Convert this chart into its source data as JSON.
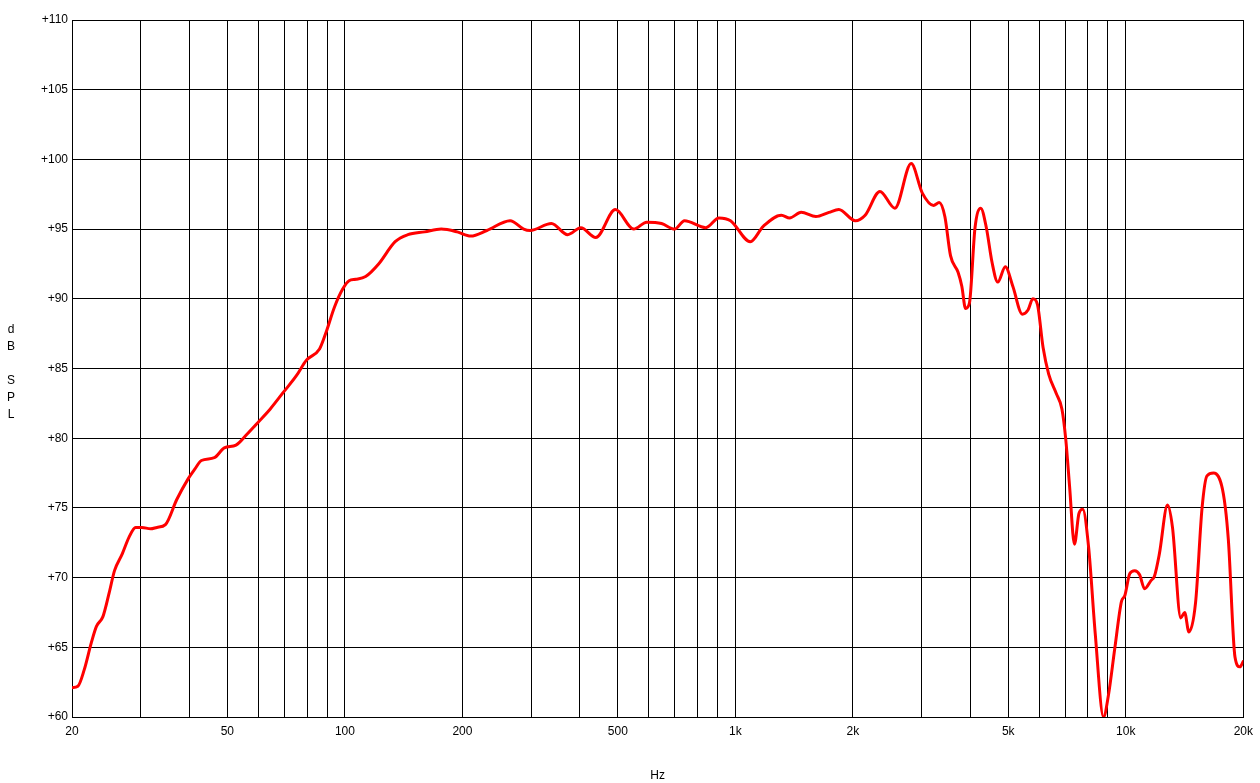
{
  "chart_data": {
    "type": "line",
    "xlabel": "Hz",
    "ylabel": "dB SPL",
    "log": "x",
    "xlim": [
      20,
      20000
    ],
    "ylim": [
      60,
      110
    ],
    "xticks": [
      20,
      {
        "value": 30,
        "label": null
      },
      {
        "value": 40,
        "label": null
      },
      50,
      {
        "value": 60,
        "label": null
      },
      {
        "value": 70,
        "label": null
      },
      {
        "value": 80,
        "label": null
      },
      {
        "value": 90,
        "label": null
      },
      100,
      200,
      {
        "value": 300,
        "label": null
      },
      {
        "value": 400,
        "label": null
      },
      500,
      {
        "value": 600,
        "label": null
      },
      {
        "value": 700,
        "label": null
      },
      {
        "value": 800,
        "label": null
      },
      {
        "value": 900,
        "label": null
      },
      {
        "value": 1000,
        "label": "1k"
      },
      {
        "value": 2000,
        "label": "2k"
      },
      {
        "value": 3000,
        "label": null
      },
      {
        "value": 4000,
        "label": null
      },
      {
        "value": 5000,
        "label": "5k"
      },
      {
        "value": 6000,
        "label": null
      },
      {
        "value": 7000,
        "label": null
      },
      {
        "value": 8000,
        "label": null
      },
      {
        "value": 9000,
        "label": null
      },
      {
        "value": 10000,
        "label": "10k"
      },
      {
        "value": 20000,
        "label": "20k"
      }
    ],
    "yticks": [
      {
        "value": 60,
        "label": "+60"
      },
      {
        "value": 65,
        "label": "+65"
      },
      {
        "value": 70,
        "label": "+70"
      },
      {
        "value": 75,
        "label": "+75"
      },
      {
        "value": 80,
        "label": "+80"
      },
      {
        "value": 85,
        "label": "+85"
      },
      {
        "value": 90,
        "label": "+90"
      },
      {
        "value": 95,
        "label": "+95"
      },
      {
        "value": 100,
        "label": "+100"
      },
      {
        "value": 105,
        "label": "+105"
      },
      {
        "value": 110,
        "label": "+110"
      }
    ],
    "grid": true,
    "marker": "none",
    "color": "#ff0000",
    "x": [
      20,
      20.7,
      21.5,
      22.4,
      23.1,
      24.0,
      24.9,
      25.7,
      26.9,
      28.0,
      29.1,
      30.2,
      31.8,
      33.0,
      34.7,
      37.1,
      39.7,
      41.3,
      42.9,
      46.3,
      49.1,
      52.6,
      56.2,
      60.2,
      64.4,
      69.6,
      75.2,
      79.7,
      86.1,
      89.5,
      94.0,
      98.7,
      102.5,
      106.6,
      113,
      122,
      134.5,
      145,
      160,
      176.5,
      194,
      210,
      231,
      265,
      287,
      298,
      338,
      372,
      402,
      439,
      493,
      549,
      593,
      647,
      699,
      741,
      840,
      908,
      972,
      1092,
      1179,
      1312,
      1377,
      1474,
      1608,
      1737,
      1841,
      2029,
      2150,
      2346,
      2562,
      2821,
      3010,
      3218,
      3327,
      3440,
      3557,
      3719,
      3802,
      3887,
      3977,
      4110,
      4251,
      4394,
      4545,
      4699,
      4914,
      5136,
      5432,
      5618,
      5780,
      5938,
      6140,
      6346,
      6637,
      6861,
      7020,
      7176,
      7388,
      7586,
      7756,
      8030,
      8350,
      8770,
      9020,
      9380,
      9750,
      9940,
      10240,
      10540,
      10850,
      11170,
      11610,
      11840,
      12190,
      12790,
      13170,
      13830,
      14150,
      14510,
      15090,
      15680,
      16140,
      16780,
      17780,
      18310,
      19040,
      19600,
      20000
    ],
    "values": [
      62.1,
      62.2,
      63.4,
      65.3,
      66.5,
      67.2,
      68.9,
      70.5,
      71.7,
      72.9,
      73.6,
      73.6,
      73.5,
      73.6,
      73.8,
      75.6,
      77.1,
      77.8,
      78.4,
      78.6,
      79.3,
      79.5,
      80.3,
      81.2,
      82.1,
      83.3,
      84.5,
      85.6,
      86.4,
      87.6,
      89.4,
      90.7,
      91.3,
      91.4,
      91.6,
      92.5,
      94.1,
      94.6,
      94.8,
      95.0,
      94.8,
      94.5,
      94.9,
      95.6,
      95.0,
      94.9,
      95.4,
      94.6,
      95.1,
      94.4,
      96.4,
      95.0,
      95.5,
      95.4,
      95.0,
      95.6,
      95.1,
      95.8,
      95.6,
      94.1,
      95.2,
      96.0,
      95.8,
      96.2,
      95.9,
      96.2,
      96.4,
      95.6,
      96.0,
      97.7,
      96.5,
      99.7,
      97.6,
      96.7,
      96.9,
      95.9,
      93.1,
      91.9,
      90.9,
      89.3,
      89.7,
      95.1,
      96.5,
      95.1,
      92.6,
      91.2,
      92.3,
      90.9,
      88.9,
      89.2,
      90.0,
      89.6,
      86.5,
      84.6,
      83.2,
      82.1,
      79.9,
      76.6,
      72.4,
      74.6,
      74.9,
      72.2,
      66.0,
      60.0,
      61.5,
      65.0,
      68.3,
      68.7,
      70.3,
      70.5,
      70.2,
      69.2,
      69.8,
      70.1,
      71.7,
      75.2,
      73.6,
      67.1,
      67.5,
      66.1,
      68.2,
      75.0,
      77.3,
      77.5,
      76.0,
      72.7,
      64.3,
      63.6,
      64.0
    ]
  }
}
